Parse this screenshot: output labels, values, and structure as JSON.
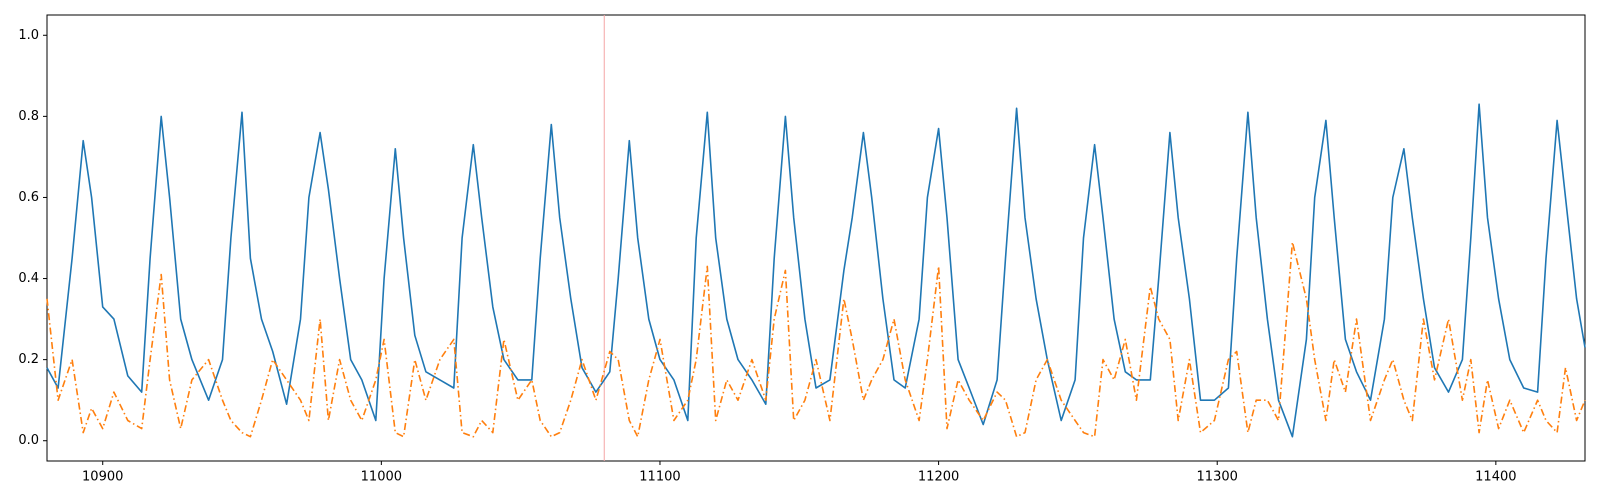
{
  "chart_data": {
    "type": "line",
    "x": [
      10880,
      10884,
      10889,
      10893,
      10896,
      10900,
      10904,
      10909,
      10914,
      10917,
      10921,
      10924,
      10928,
      10932,
      10938,
      10943,
      10946,
      10950,
      10953,
      10957,
      10961,
      10966,
      10971,
      10974,
      10978,
      10981,
      10985,
      10989,
      10993,
      10998,
      11001,
      11005,
      11008,
      11012,
      11016,
      11021,
      11026,
      11029,
      11033,
      11036,
      11040,
      11044,
      11049,
      11054,
      11057,
      11061,
      11064,
      11068,
      11072,
      11077,
      11082,
      11085,
      11089,
      11092,
      11096,
      11100,
      11105,
      11110,
      11113,
      11117,
      11120,
      11124,
      11128,
      11133,
      11138,
      11141,
      11145,
      11148,
      11152,
      11156,
      11161,
      11166,
      11169,
      11173,
      11176,
      11180,
      11184,
      11188,
      11193,
      11196,
      11200,
      11203,
      11207,
      11211,
      11216,
      11221,
      11224,
      11228,
      11231,
      11235,
      11239,
      11244,
      11249,
      11252,
      11256,
      11259,
      11263,
      11267,
      11271,
      11276,
      11279,
      11283,
      11286,
      11290,
      11294,
      11299,
      11304,
      11307,
      11311,
      11314,
      11318,
      11322,
      11327,
      11332,
      11335,
      11339,
      11342,
      11346,
      11350,
      11355,
      11360,
      11363,
      11367,
      11370,
      11374,
      11378,
      11383,
      11388,
      11391,
      11394,
      11397,
      11401,
      11405,
      11410,
      11415,
      11418,
      11422,
      11425,
      11429,
      11432
    ],
    "series": [
      {
        "color": "#1f77b4",
        "style": "solid",
        "values": [
          0.18,
          0.13,
          0.45,
          0.74,
          0.6,
          0.33,
          0.3,
          0.16,
          0.12,
          0.45,
          0.8,
          0.6,
          0.3,
          0.2,
          0.1,
          0.2,
          0.5,
          0.81,
          0.45,
          0.3,
          0.22,
          0.09,
          0.3,
          0.6,
          0.76,
          0.62,
          0.4,
          0.2,
          0.15,
          0.05,
          0.4,
          0.72,
          0.5,
          0.26,
          0.17,
          0.15,
          0.13,
          0.5,
          0.73,
          0.55,
          0.33,
          0.2,
          0.15,
          0.15,
          0.45,
          0.78,
          0.55,
          0.35,
          0.18,
          0.12,
          0.17,
          0.4,
          0.74,
          0.5,
          0.3,
          0.2,
          0.15,
          0.05,
          0.5,
          0.81,
          0.5,
          0.3,
          0.2,
          0.15,
          0.09,
          0.45,
          0.8,
          0.55,
          0.3,
          0.13,
          0.15,
          0.42,
          0.55,
          0.76,
          0.6,
          0.35,
          0.15,
          0.13,
          0.3,
          0.6,
          0.77,
          0.55,
          0.2,
          0.13,
          0.04,
          0.15,
          0.45,
          0.82,
          0.55,
          0.35,
          0.2,
          0.05,
          0.15,
          0.5,
          0.73,
          0.55,
          0.3,
          0.17,
          0.15,
          0.15,
          0.4,
          0.76,
          0.55,
          0.35,
          0.1,
          0.1,
          0.13,
          0.45,
          0.81,
          0.55,
          0.3,
          0.1,
          0.01,
          0.25,
          0.6,
          0.79,
          0.55,
          0.25,
          0.17,
          0.1,
          0.3,
          0.6,
          0.72,
          0.55,
          0.35,
          0.18,
          0.12,
          0.2,
          0.5,
          0.83,
          0.55,
          0.35,
          0.2,
          0.13,
          0.12,
          0.45,
          0.79,
          0.6,
          0.35,
          0.23
        ]
      },
      {
        "color": "#ff7f0e",
        "style": "dashdot",
        "values": [
          0.35,
          0.1,
          0.2,
          0.02,
          0.08,
          0.03,
          0.12,
          0.05,
          0.03,
          0.2,
          0.41,
          0.15,
          0.03,
          0.15,
          0.2,
          0.1,
          0.05,
          0.02,
          0.01,
          0.1,
          0.2,
          0.15,
          0.1,
          0.05,
          0.3,
          0.05,
          0.2,
          0.1,
          0.05,
          0.15,
          0.25,
          0.02,
          0.01,
          0.2,
          0.1,
          0.2,
          0.25,
          0.02,
          0.01,
          0.05,
          0.02,
          0.25,
          0.1,
          0.15,
          0.05,
          0.01,
          0.02,
          0.1,
          0.2,
          0.1,
          0.22,
          0.2,
          0.05,
          0.01,
          0.15,
          0.25,
          0.05,
          0.1,
          0.2,
          0.43,
          0.05,
          0.15,
          0.1,
          0.2,
          0.1,
          0.3,
          0.42,
          0.05,
          0.1,
          0.2,
          0.05,
          0.35,
          0.25,
          0.1,
          0.15,
          0.2,
          0.3,
          0.15,
          0.05,
          0.2,
          0.43,
          0.03,
          0.15,
          0.1,
          0.05,
          0.12,
          0.1,
          0.01,
          0.02,
          0.15,
          0.2,
          0.1,
          0.05,
          0.02,
          0.01,
          0.2,
          0.15,
          0.25,
          0.1,
          0.38,
          0.3,
          0.25,
          0.05,
          0.2,
          0.02,
          0.05,
          0.2,
          0.22,
          0.02,
          0.1,
          0.1,
          0.05,
          0.49,
          0.35,
          0.2,
          0.05,
          0.2,
          0.12,
          0.3,
          0.05,
          0.15,
          0.2,
          0.1,
          0.05,
          0.3,
          0.15,
          0.3,
          0.1,
          0.2,
          0.02,
          0.15,
          0.03,
          0.1,
          0.02,
          0.1,
          0.05,
          0.02,
          0.18,
          0.05,
          0.1
        ]
      }
    ],
    "xlim": [
      10880,
      11432
    ],
    "xticks": [
      10900,
      11000,
      11100,
      11200,
      11300,
      11400
    ],
    "ylim": [
      -0.05,
      1.05
    ],
    "yticks": [
      {
        "value": 0,
        "label": "0.0"
      },
      0.2,
      0.4,
      0.6,
      0.8,
      {
        "value": 1,
        "label": "1.0"
      }
    ],
    "vlines": [
      {
        "x": 11080,
        "color": "#f4a6a6"
      }
    ]
  }
}
